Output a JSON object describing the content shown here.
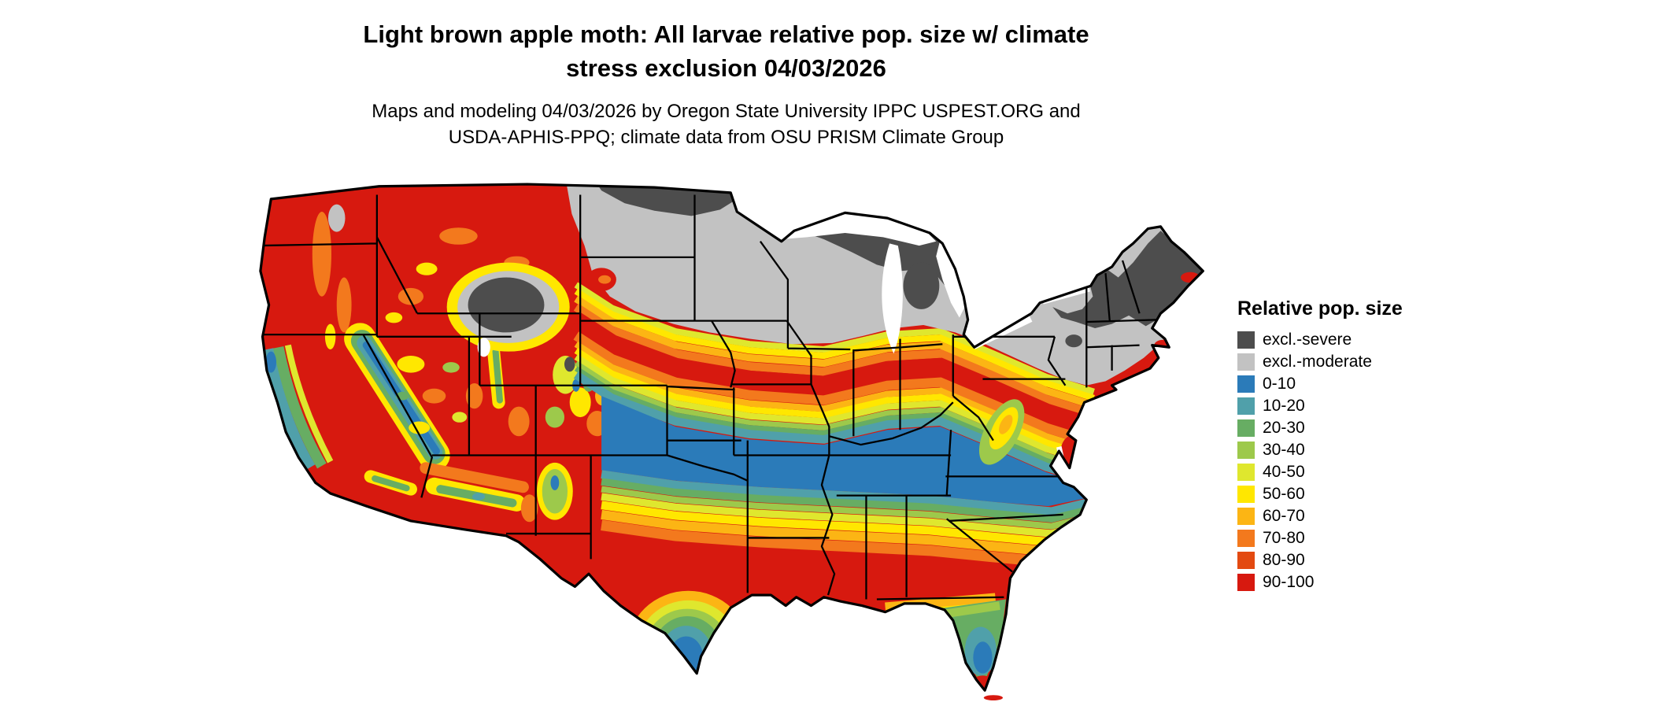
{
  "title": {
    "line1": "Light brown apple moth: All larvae relative pop. size w/ climate",
    "line2": "stress exclusion 04/03/2026"
  },
  "subtitle": {
    "line1": "Maps and modeling 04/03/2026 by Oregon State University IPPC USPEST.ORG and",
    "line2": "USDA-APHIS-PPQ; climate data from OSU PRISM Climate Group"
  },
  "legend": {
    "title": "Relative pop. size",
    "entries": [
      {
        "label": "excl.-severe",
        "color": "#4d4d4d"
      },
      {
        "label": "excl.-moderate",
        "color": "#c2c2c2"
      },
      {
        "label": "0-10",
        "color": "#2b7bb9"
      },
      {
        "label": "10-20",
        "color": "#50a0aa"
      },
      {
        "label": "20-30",
        "color": "#67ad63"
      },
      {
        "label": "30-40",
        "color": "#9dc94b"
      },
      {
        "label": "40-50",
        "color": "#dfe72e"
      },
      {
        "label": "50-60",
        "color": "#ffe700"
      },
      {
        "label": "60-70",
        "color": "#fcb514"
      },
      {
        "label": "70-80",
        "color": "#f3791d"
      },
      {
        "label": "80-90",
        "color": "#e34a11"
      },
      {
        "label": "90-100",
        "color": "#d7190f"
      }
    ]
  }
}
